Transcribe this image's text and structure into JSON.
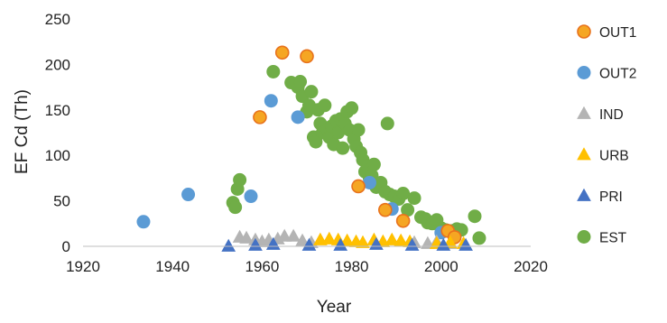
{
  "chart_data": {
    "type": "scatter",
    "title": "",
    "xlabel": "Year",
    "ylabel": "EF Cd (Th)",
    "xlim": [
      1920,
      2020
    ],
    "ylim": [
      0,
      250
    ],
    "x_ticks": [
      1920,
      1940,
      1960,
      1980,
      2000,
      2020
    ],
    "y_ticks": [
      0,
      50,
      100,
      150,
      200,
      250
    ],
    "grid": false,
    "legend_position": "right",
    "series": [
      {
        "name": "OUT1",
        "marker": "circle",
        "color": "#F5A623",
        "edge": "#E8721C",
        "points": [
          [
            1959.5,
            142
          ],
          [
            1964.5,
            213
          ],
          [
            1970,
            209
          ],
          [
            1981.5,
            66
          ],
          [
            1987.5,
            40
          ],
          [
            1991.5,
            28
          ],
          [
            2001.5,
            17
          ],
          [
            2003,
            10
          ]
        ]
      },
      {
        "name": "OUT2",
        "marker": "circle",
        "color": "#5B9BD5",
        "edge": "#5B9BD5",
        "points": [
          [
            1933.5,
            27
          ],
          [
            1943.5,
            57
          ],
          [
            1957.5,
            55
          ],
          [
            1962,
            160
          ],
          [
            1968,
            142
          ],
          [
            1984,
            70
          ],
          [
            1989,
            41
          ],
          [
            2000,
            15
          ]
        ]
      },
      {
        "name": "IND",
        "marker": "triangle",
        "color": "#B4B4B4",
        "edge": "#B4B4B4",
        "points": [
          [
            1955,
            10
          ],
          [
            1956.5,
            9
          ],
          [
            1958.5,
            7
          ],
          [
            1960,
            5
          ],
          [
            1961.5,
            7
          ],
          [
            1963.5,
            8
          ],
          [
            1965,
            11
          ],
          [
            1967,
            11
          ],
          [
            1969,
            6
          ],
          [
            1971,
            4
          ],
          [
            1994,
            4
          ],
          [
            1997,
            3
          ],
          [
            1999,
            5
          ],
          [
            2002,
            3
          ]
        ]
      },
      {
        "name": "URB",
        "marker": "triangle",
        "color": "#FFC000",
        "edge": "#FFC000",
        "points": [
          [
            1973,
            7
          ],
          [
            1975,
            8
          ],
          [
            1977,
            7
          ],
          [
            1979,
            6
          ],
          [
            1981,
            5
          ],
          [
            1982.5,
            4
          ],
          [
            1985,
            7
          ],
          [
            1987,
            5
          ],
          [
            1989,
            7
          ],
          [
            1991,
            6
          ],
          [
            1993,
            5
          ],
          [
            1999,
            3
          ],
          [
            2002,
            4
          ],
          [
            2005,
            3
          ]
        ]
      },
      {
        "name": "PRI",
        "marker": "triangle",
        "color": "#4472C4",
        "edge": "#4472C4",
        "points": [
          [
            1952.5,
            0
          ],
          [
            1958.5,
            1
          ],
          [
            1962.5,
            2
          ],
          [
            1970.5,
            1
          ],
          [
            1977.5,
            1
          ],
          [
            1985.5,
            2
          ],
          [
            1993.5,
            1
          ],
          [
            2000.5,
            1
          ],
          [
            2005.5,
            1
          ]
        ]
      },
      {
        "name": "EST",
        "marker": "circle",
        "color": "#70AD47",
        "edge": "#70AD47",
        "points": [
          [
            1953.5,
            48
          ],
          [
            1954,
            43
          ],
          [
            1954.5,
            63
          ],
          [
            1955,
            73
          ],
          [
            1962.5,
            192
          ],
          [
            1966.5,
            180
          ],
          [
            1968,
            175
          ],
          [
            1968.5,
            181
          ],
          [
            1969,
            165
          ],
          [
            1970,
            148
          ],
          [
            1970.5,
            155
          ],
          [
            1971,
            170
          ],
          [
            1971.5,
            120
          ],
          [
            1972,
            115
          ],
          [
            1972.5,
            150
          ],
          [
            1973,
            135
          ],
          [
            1973.5,
            125
          ],
          [
            1974,
            155
          ],
          [
            1974.5,
            128
          ],
          [
            1975,
            120
          ],
          [
            1975.5,
            132
          ],
          [
            1976,
            112
          ],
          [
            1976.5,
            138
          ],
          [
            1977,
            125
          ],
          [
            1977.5,
            140
          ],
          [
            1978,
            108
          ],
          [
            1978.5,
            135
          ],
          [
            1979,
            148
          ],
          [
            1979.5,
            128
          ],
          [
            1980,
            152
          ],
          [
            1980.5,
            118
          ],
          [
            1981,
            110
          ],
          [
            1981.5,
            128
          ],
          [
            1982,
            103
          ],
          [
            1982.5,
            95
          ],
          [
            1983,
            82
          ],
          [
            1983.5,
            88
          ],
          [
            1984,
            75
          ],
          [
            1984.5,
            78
          ],
          [
            1985,
            90
          ],
          [
            1985.5,
            65
          ],
          [
            1986.5,
            70
          ],
          [
            1987.5,
            60
          ],
          [
            1988,
            135
          ],
          [
            1988.5,
            57
          ],
          [
            1989.5,
            55
          ],
          [
            1990.5,
            52
          ],
          [
            1991.5,
            58
          ],
          [
            1992.5,
            40
          ],
          [
            1994,
            53
          ],
          [
            1995.5,
            32
          ],
          [
            1996.5,
            30
          ],
          [
            1997,
            26
          ],
          [
            1998,
            25
          ],
          [
            1999,
            29
          ],
          [
            2000,
            20
          ],
          [
            2001,
            18
          ],
          [
            2002.5,
            17
          ],
          [
            2003.5,
            19
          ],
          [
            2004.5,
            18
          ],
          [
            2007.5,
            33
          ],
          [
            2008.5,
            9
          ]
        ]
      }
    ]
  }
}
